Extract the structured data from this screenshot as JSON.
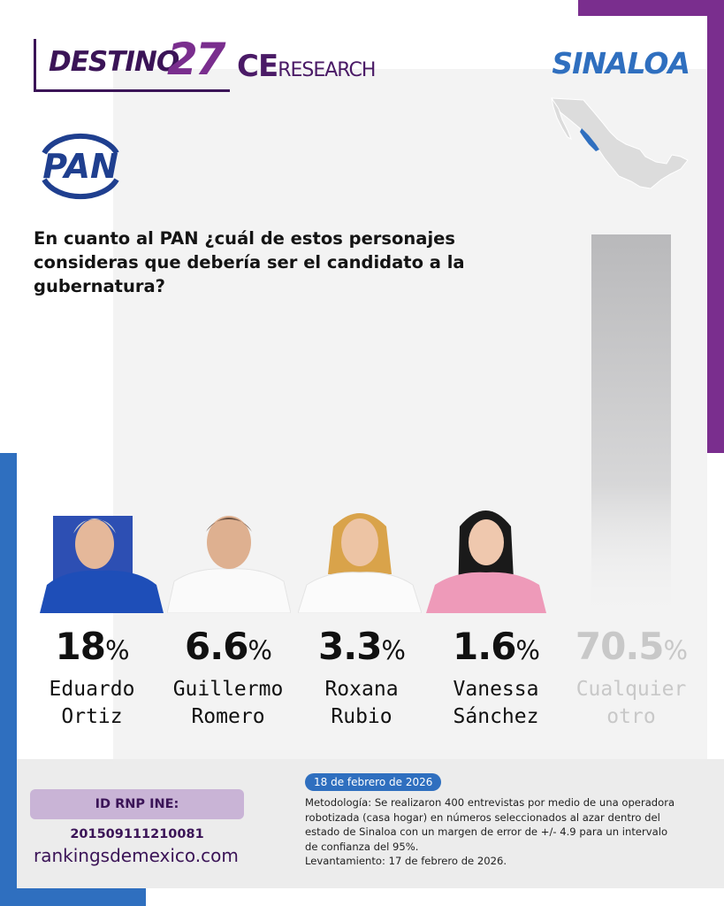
{
  "header": {
    "brand_word": "DESTINO",
    "brand_number": "27",
    "partner_ce": "CE",
    "partner_research": "RESEARCH",
    "state": "SINALOA",
    "party": "PAN"
  },
  "question": "En cuanto al PAN ¿cuál de estos personajes consideras que debería ser el candidato a la gubernatura?",
  "chart_data": {
    "type": "bar",
    "title": "En cuanto al PAN ¿cuál de estos personajes consideras que debería ser el candidato a la gubernatura?",
    "categories": [
      "Eduardo Ortiz",
      "Guillermo Romero",
      "Roxana Rubio",
      "Vanessa Sánchez",
      "Cualquier otro"
    ],
    "values": [
      18,
      6.6,
      3.3,
      1.6,
      70.5
    ],
    "unit": "%",
    "ylim": [
      0,
      100
    ],
    "grid": false,
    "items": [
      {
        "value": "18",
        "unit": "%",
        "name_line1": "Eduardo",
        "name_line2": "Ortiz"
      },
      {
        "value": "6.6",
        "unit": "%",
        "name_line1": "Guillermo",
        "name_line2": "Romero"
      },
      {
        "value": "3.3",
        "unit": "%",
        "name_line1": "Roxana",
        "name_line2": "Rubio"
      },
      {
        "value": "1.6",
        "unit": "%",
        "name_line1": "Vanessa",
        "name_line2": "Sánchez"
      },
      {
        "value": "70.5",
        "unit": "%",
        "name_line1": "Cualquier",
        "name_line2": "otro"
      }
    ]
  },
  "footer": {
    "rnp_id": "ID RNP INE: 201509111210081",
    "website": "rankingsdemexico.com",
    "date": "18 de febrero de 2026",
    "methodology": "Metodología: Se realizaron 400 entrevistas por medio de una operadora robotizada (casa hogar) en números seleccionados al azar dentro del estado de Sinaloa con un margen de error de +/- 4.9 para un intervalo de confianza del 95%.",
    "fieldwork": "Levantamiento: 17 de febrero de 2026."
  },
  "colors": {
    "purple": "#7a2e8e",
    "dark_purple": "#3b1457",
    "blue": "#2f6fbf",
    "bar_gray": "#b9b9bb",
    "muted_text": "#c8c8c8",
    "pan_blue": "#1f3f8f"
  }
}
